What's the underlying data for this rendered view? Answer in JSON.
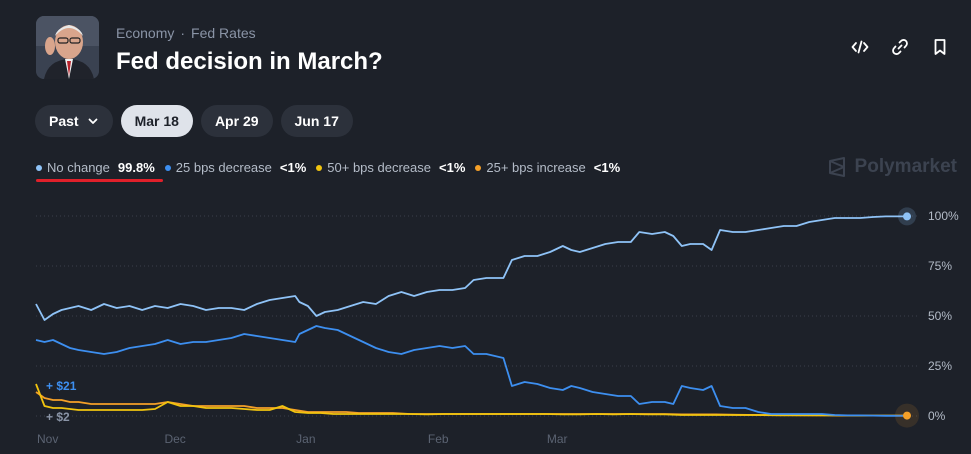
{
  "header": {
    "breadcrumb_category": "Economy",
    "breadcrumb_separator": "·",
    "breadcrumb_subcategory": "Fed Rates",
    "title": "Fed decision in March?"
  },
  "actions": {
    "embed_icon": "code-icon",
    "link_icon": "link-icon",
    "bookmark_icon": "bookmark-icon"
  },
  "tabs": [
    {
      "label": "Past"
    },
    {
      "label": "Mar 18"
    },
    {
      "label": "Apr 29"
    },
    {
      "label": "Jun 17"
    }
  ],
  "brand": "Polymarket",
  "legend": [
    {
      "label": "No change",
      "value": "99.8%",
      "color": "#8fc3f7"
    },
    {
      "label": "25 bps decrease",
      "value": "<1%",
      "color": "#3d8ff0"
    },
    {
      "label": "50+ bps decrease",
      "value": "<1%",
      "color": "#f1c40f"
    },
    {
      "label": "25+ bps increase",
      "value": "<1%",
      "color": "#f5a028"
    }
  ],
  "chart_data": {
    "type": "line",
    "x_tick_labels": [
      "Nov",
      "Dec",
      "Jan",
      "Feb",
      "Mar"
    ],
    "y_tick_labels": [
      "100%",
      "75%",
      "50%",
      "25%",
      "0%"
    ],
    "y_ticks": [
      100,
      75,
      50,
      25,
      0
    ],
    "ylim": [
      0,
      100
    ],
    "x_range": [
      "Nov 1",
      "Mar 18"
    ],
    "grid": true,
    "annotations": [
      {
        "text": "+ $21",
        "color": "#3d8ff0"
      },
      {
        "text": "+ $2",
        "color": "#8a94a6"
      }
    ],
    "series": [
      {
        "name": "No change",
        "color": "#8fc3f7",
        "points": [
          [
            0,
            56
          ],
          [
            2,
            48
          ],
          [
            4,
            51
          ],
          [
            6,
            53
          ],
          [
            8,
            54
          ],
          [
            10,
            55
          ],
          [
            13,
            53
          ],
          [
            16,
            56
          ],
          [
            19,
            54
          ],
          [
            22,
            55
          ],
          [
            25,
            53
          ],
          [
            28,
            55
          ],
          [
            31,
            54
          ],
          [
            34,
            56
          ],
          [
            37,
            55
          ],
          [
            40,
            53
          ],
          [
            43,
            54
          ],
          [
            46,
            54
          ],
          [
            49,
            53
          ],
          [
            52,
            56
          ],
          [
            55,
            58
          ],
          [
            58,
            59
          ],
          [
            61,
            60
          ],
          [
            62,
            57
          ],
          [
            64,
            55
          ],
          [
            66,
            50
          ],
          [
            68,
            52
          ],
          [
            71,
            53
          ],
          [
            74,
            55
          ],
          [
            77,
            57
          ],
          [
            80,
            56
          ],
          [
            83,
            60
          ],
          [
            86,
            62
          ],
          [
            89,
            60
          ],
          [
            92,
            62
          ],
          [
            95,
            63
          ],
          [
            98,
            63
          ],
          [
            101,
            64
          ],
          [
            103,
            68
          ],
          [
            106,
            69
          ],
          [
            110,
            69
          ],
          [
            112,
            78
          ],
          [
            115,
            80
          ],
          [
            118,
            80
          ],
          [
            121,
            82
          ],
          [
            124,
            85
          ],
          [
            126,
            83
          ],
          [
            128,
            82
          ],
          [
            131,
            84
          ],
          [
            134,
            86
          ],
          [
            137,
            87
          ],
          [
            140,
            87
          ],
          [
            142,
            92
          ],
          [
            145,
            91
          ],
          [
            148,
            92
          ],
          [
            150,
            90
          ],
          [
            152,
            85
          ],
          [
            154,
            86
          ],
          [
            157,
            86
          ],
          [
            159,
            83
          ],
          [
            161,
            93
          ],
          [
            164,
            92
          ],
          [
            167,
            92
          ],
          [
            170,
            93
          ],
          [
            173,
            94
          ],
          [
            176,
            95
          ],
          [
            179,
            95
          ],
          [
            182,
            97
          ],
          [
            185,
            98
          ],
          [
            188,
            99
          ],
          [
            191,
            99
          ],
          [
            194,
            99
          ],
          [
            197,
            99.5
          ],
          [
            200,
            99.8
          ],
          [
            205,
            99.8
          ]
        ]
      },
      {
        "name": "25 bps decrease",
        "color": "#3d8ff0",
        "points": [
          [
            0,
            38
          ],
          [
            2,
            37
          ],
          [
            4,
            38
          ],
          [
            6,
            36
          ],
          [
            8,
            34
          ],
          [
            10,
            33
          ],
          [
            13,
            32
          ],
          [
            16,
            31
          ],
          [
            19,
            32
          ],
          [
            22,
            34
          ],
          [
            25,
            35
          ],
          [
            28,
            36
          ],
          [
            31,
            38
          ],
          [
            34,
            36
          ],
          [
            37,
            37
          ],
          [
            40,
            37
          ],
          [
            43,
            38
          ],
          [
            46,
            39
          ],
          [
            49,
            41
          ],
          [
            52,
            40
          ],
          [
            55,
            39
          ],
          [
            58,
            38
          ],
          [
            61,
            37
          ],
          [
            62,
            41
          ],
          [
            64,
            43
          ],
          [
            66,
            45
          ],
          [
            68,
            44
          ],
          [
            71,
            43
          ],
          [
            74,
            40
          ],
          [
            77,
            37
          ],
          [
            80,
            34
          ],
          [
            83,
            32
          ],
          [
            86,
            31
          ],
          [
            89,
            33
          ],
          [
            92,
            34
          ],
          [
            95,
            35
          ],
          [
            98,
            34
          ],
          [
            101,
            35
          ],
          [
            103,
            31
          ],
          [
            106,
            31
          ],
          [
            110,
            29
          ],
          [
            112,
            15
          ],
          [
            115,
            17
          ],
          [
            118,
            16
          ],
          [
            121,
            14
          ],
          [
            124,
            13
          ],
          [
            126,
            15
          ],
          [
            128,
            14
          ],
          [
            131,
            12
          ],
          [
            134,
            11
          ],
          [
            137,
            10
          ],
          [
            140,
            10
          ],
          [
            142,
            6
          ],
          [
            145,
            7
          ],
          [
            148,
            7
          ],
          [
            150,
            6
          ],
          [
            152,
            15
          ],
          [
            154,
            14
          ],
          [
            157,
            13
          ],
          [
            159,
            15
          ],
          [
            161,
            5
          ],
          [
            164,
            4
          ],
          [
            167,
            4
          ],
          [
            170,
            2
          ],
          [
            173,
            1
          ],
          [
            176,
            1
          ],
          [
            179,
            1
          ],
          [
            182,
            1
          ],
          [
            185,
            1
          ],
          [
            188,
            0.5
          ],
          [
            191,
            0.3
          ],
          [
            194,
            0.3
          ],
          [
            197,
            0.2
          ],
          [
            200,
            0.1
          ],
          [
            205,
            0.1
          ]
        ]
      },
      {
        "name": "50+ bps decrease",
        "color": "#f1c40f",
        "points": [
          [
            0,
            16
          ],
          [
            2,
            5
          ],
          [
            4,
            4
          ],
          [
            6,
            4
          ],
          [
            8,
            3.5
          ],
          [
            10,
            3
          ],
          [
            13,
            3
          ],
          [
            16,
            3
          ],
          [
            19,
            3
          ],
          [
            22,
            3
          ],
          [
            25,
            3
          ],
          [
            28,
            3.5
          ],
          [
            31,
            7
          ],
          [
            34,
            5
          ],
          [
            37,
            5
          ],
          [
            40,
            4
          ],
          [
            43,
            4
          ],
          [
            46,
            4
          ],
          [
            49,
            3.5
          ],
          [
            52,
            3
          ],
          [
            55,
            3
          ],
          [
            58,
            5
          ],
          [
            61,
            2
          ],
          [
            64,
            1.5
          ],
          [
            67,
            1.5
          ],
          [
            70,
            1
          ],
          [
            73,
            1
          ],
          [
            76,
            1
          ],
          [
            80,
            1
          ],
          [
            84,
            1
          ],
          [
            88,
            1
          ],
          [
            92,
            0.8
          ],
          [
            96,
            1
          ],
          [
            100,
            1
          ],
          [
            104,
            1
          ],
          [
            108,
            1
          ],
          [
            112,
            1
          ],
          [
            116,
            1
          ],
          [
            120,
            1
          ],
          [
            124,
            0.8
          ],
          [
            128,
            0.8
          ],
          [
            132,
            1
          ],
          [
            136,
            0.8
          ],
          [
            140,
            1
          ],
          [
            144,
            0.8
          ],
          [
            148,
            0.8
          ],
          [
            152,
            0.5
          ],
          [
            156,
            0.5
          ],
          [
            160,
            0.5
          ],
          [
            165,
            0.5
          ],
          [
            170,
            0.5
          ],
          [
            175,
            0.3
          ],
          [
            180,
            0.3
          ],
          [
            185,
            0.3
          ],
          [
            190,
            0.3
          ],
          [
            195,
            0.2
          ],
          [
            200,
            0.2
          ],
          [
            205,
            0.2
          ]
        ]
      },
      {
        "name": "25+ bps increase",
        "color": "#f5a028",
        "points": [
          [
            0,
            12
          ],
          [
            2,
            9
          ],
          [
            4,
            8
          ],
          [
            6,
            8
          ],
          [
            8,
            7
          ],
          [
            10,
            7
          ],
          [
            13,
            6
          ],
          [
            16,
            6
          ],
          [
            19,
            6
          ],
          [
            22,
            6
          ],
          [
            25,
            6
          ],
          [
            28,
            6
          ],
          [
            31,
            7
          ],
          [
            34,
            6
          ],
          [
            37,
            5
          ],
          [
            40,
            5
          ],
          [
            43,
            5
          ],
          [
            46,
            5
          ],
          [
            49,
            5
          ],
          [
            52,
            4
          ],
          [
            55,
            4
          ],
          [
            58,
            4
          ],
          [
            61,
            3
          ],
          [
            64,
            2
          ],
          [
            67,
            2
          ],
          [
            70,
            2
          ],
          [
            73,
            2
          ],
          [
            76,
            1.5
          ],
          [
            80,
            1.5
          ],
          [
            84,
            1.5
          ],
          [
            88,
            1
          ],
          [
            92,
            1
          ],
          [
            96,
            1
          ],
          [
            100,
            1
          ],
          [
            104,
            1
          ],
          [
            108,
            1
          ],
          [
            112,
            1
          ],
          [
            116,
            1
          ],
          [
            120,
            1
          ],
          [
            124,
            1
          ],
          [
            128,
            1
          ],
          [
            132,
            1
          ],
          [
            136,
            1
          ],
          [
            140,
            1
          ],
          [
            144,
            1
          ],
          [
            148,
            1
          ],
          [
            152,
            0.8
          ],
          [
            156,
            0.8
          ],
          [
            160,
            0.8
          ],
          [
            165,
            0.6
          ],
          [
            170,
            0.5
          ],
          [
            175,
            0.5
          ],
          [
            180,
            0.4
          ],
          [
            185,
            0.3
          ],
          [
            190,
            0.2
          ],
          [
            195,
            0.2
          ],
          [
            200,
            0.2
          ],
          [
            205,
            0.2
          ]
        ]
      }
    ]
  }
}
